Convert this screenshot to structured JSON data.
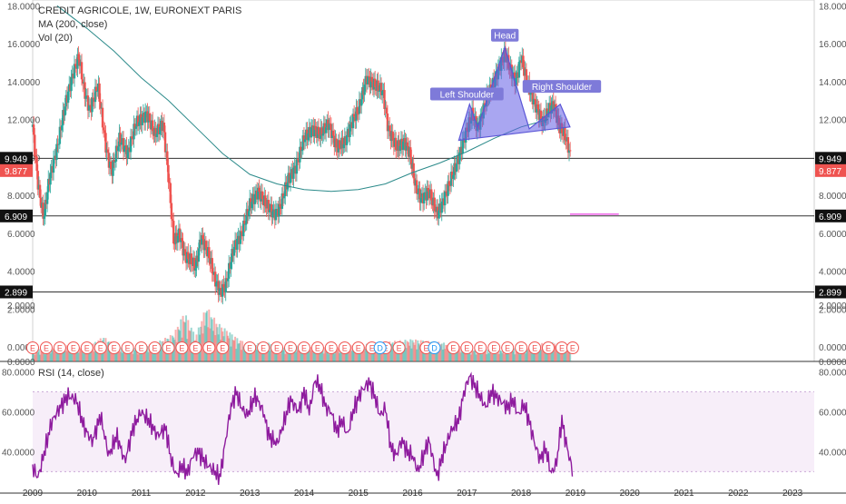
{
  "chart_data": {
    "type": "candlestick",
    "title": "CREDIT AGRICOLE, 1W, EURONEXT PARIS",
    "indicators": [
      "MA (200, close)",
      "Vol (20)"
    ],
    "price_axis_ticks": [
      "18.0000",
      "16.0000",
      "14.0000",
      "12.0000",
      "10.0000",
      "8.0000",
      "6.0000",
      "4.0000",
      "2.0000",
      "0.0000"
    ],
    "price_ylim": [
      0,
      18
    ],
    "x_ticks": [
      "2009",
      "2010",
      "2011",
      "2012",
      "2013",
      "2014",
      "2015",
      "2016",
      "2017",
      "2018",
      "2019",
      "2020",
      "2021",
      "2022",
      "2023"
    ],
    "horizontal_levels": [
      {
        "value": 9.949,
        "label": "9.949"
      },
      {
        "value": 6.909,
        "label": "6.909"
      },
      {
        "value": 2.899,
        "label": "2.899"
      }
    ],
    "last_price": {
      "value": 9.877,
      "label": "9.877"
    },
    "annotations": [
      {
        "text": "Left Shoulder"
      },
      {
        "text": "Head"
      },
      {
        "text": "Right Shoulder"
      }
    ],
    "price_path": [
      [
        2009.0,
        11.6
      ],
      [
        2009.1,
        8.5
      ],
      [
        2009.2,
        6.8
      ],
      [
        2009.3,
        8.8
      ],
      [
        2009.45,
        10.5
      ],
      [
        2009.6,
        12.8
      ],
      [
        2009.75,
        14.5
      ],
      [
        2009.85,
        15.3
      ],
      [
        2009.95,
        13.5
      ],
      [
        2010.05,
        12.5
      ],
      [
        2010.2,
        13.8
      ],
      [
        2010.35,
        10.5
      ],
      [
        2010.45,
        9.2
      ],
      [
        2010.6,
        11.0
      ],
      [
        2010.75,
        10.2
      ],
      [
        2010.9,
        11.8
      ],
      [
        2011.0,
        12.0
      ],
      [
        2011.1,
        12.3
      ],
      [
        2011.25,
        11.2
      ],
      [
        2011.4,
        11.8
      ],
      [
        2011.5,
        9.0
      ],
      [
        2011.6,
        5.5
      ],
      [
        2011.7,
        6.0
      ],
      [
        2011.8,
        4.8
      ],
      [
        2011.9,
        4.6
      ],
      [
        2012.0,
        4.2
      ],
      [
        2012.1,
        5.8
      ],
      [
        2012.25,
        4.8
      ],
      [
        2012.35,
        3.6
      ],
      [
        2012.45,
        2.9
      ],
      [
        2012.55,
        3.2
      ],
      [
        2012.7,
        5.2
      ],
      [
        2012.85,
        6.0
      ],
      [
        2013.0,
        7.5
      ],
      [
        2013.15,
        8.2
      ],
      [
        2013.3,
        7.5
      ],
      [
        2013.45,
        7.0
      ],
      [
        2013.55,
        7.3
      ],
      [
        2013.7,
        8.8
      ],
      [
        2013.85,
        9.5
      ],
      [
        2014.0,
        11.0
      ],
      [
        2014.15,
        11.5
      ],
      [
        2014.3,
        11.2
      ],
      [
        2014.45,
        11.8
      ],
      [
        2014.6,
        10.5
      ],
      [
        2014.75,
        10.8
      ],
      [
        2014.9,
        12.0
      ],
      [
        2015.0,
        12.5
      ],
      [
        2015.15,
        14.2
      ],
      [
        2015.3,
        13.8
      ],
      [
        2015.45,
        13.5
      ],
      [
        2015.55,
        11.5
      ],
      [
        2015.7,
        10.5
      ],
      [
        2015.85,
        10.8
      ],
      [
        2015.95,
        10.2
      ],
      [
        2016.05,
        8.5
      ],
      [
        2016.15,
        7.8
      ],
      [
        2016.3,
        8.2
      ],
      [
        2016.45,
        7.0
      ],
      [
        2016.55,
        7.6
      ],
      [
        2016.7,
        8.8
      ],
      [
        2016.85,
        10.0
      ],
      [
        2016.95,
        11.0
      ],
      [
        2017.1,
        12.3
      ],
      [
        2017.2,
        11.5
      ],
      [
        2017.35,
        13.0
      ],
      [
        2017.5,
        14.0
      ],
      [
        2017.6,
        14.8
      ],
      [
        2017.7,
        15.5
      ],
      [
        2017.8,
        14.6
      ],
      [
        2017.9,
        14.0
      ],
      [
        2018.0,
        15.3
      ],
      [
        2018.1,
        14.0
      ],
      [
        2018.2,
        13.2
      ],
      [
        2018.3,
        12.5
      ],
      [
        2018.4,
        11.8
      ],
      [
        2018.5,
        12.5
      ],
      [
        2018.6,
        12.8
      ],
      [
        2018.7,
        11.6
      ],
      [
        2018.8,
        11.2
      ],
      [
        2018.88,
        10.4
      ],
      [
        2018.92,
        9.877
      ]
    ],
    "ma200_path": [
      [
        2009.45,
        18.0
      ],
      [
        2010.0,
        16.8
      ],
      [
        2010.5,
        15.6
      ],
      [
        2011.0,
        14.2
      ],
      [
        2011.5,
        13.0
      ],
      [
        2012.0,
        11.6
      ],
      [
        2012.5,
        10.2
      ],
      [
        2013.0,
        9.1
      ],
      [
        2013.5,
        8.6
      ],
      [
        2014.0,
        8.3
      ],
      [
        2014.5,
        8.2
      ],
      [
        2015.0,
        8.3
      ],
      [
        2015.5,
        8.6
      ],
      [
        2016.0,
        9.2
      ],
      [
        2016.5,
        9.7
      ],
      [
        2017.0,
        10.3
      ],
      [
        2017.5,
        11.0
      ],
      [
        2018.0,
        11.6
      ],
      [
        2018.5,
        12.0
      ]
    ],
    "volume_path": [
      [
        2009.0,
        0.4
      ],
      [
        2009.5,
        0.6
      ],
      [
        2010.0,
        0.5
      ],
      [
        2010.3,
        0.9
      ],
      [
        2010.6,
        0.5
      ],
      [
        2011.0,
        0.5
      ],
      [
        2011.3,
        0.7
      ],
      [
        2011.6,
        1.0
      ],
      [
        2011.8,
        1.8
      ],
      [
        2012.0,
        0.9
      ],
      [
        2012.2,
        2.0
      ],
      [
        2012.4,
        1.4
      ],
      [
        2012.6,
        1.1
      ],
      [
        2012.8,
        0.8
      ],
      [
        2013.0,
        0.6
      ],
      [
        2013.3,
        0.7
      ],
      [
        2013.6,
        0.5
      ],
      [
        2014.0,
        0.6
      ],
      [
        2014.5,
        0.5
      ],
      [
        2015.0,
        0.6
      ],
      [
        2015.5,
        0.7
      ],
      [
        2016.0,
        0.8
      ],
      [
        2016.5,
        0.7
      ],
      [
        2017.0,
        0.5
      ],
      [
        2017.5,
        0.4
      ],
      [
        2018.0,
        0.5
      ],
      [
        2018.5,
        0.7
      ],
      [
        2018.9,
        0.6
      ]
    ],
    "earnings_markers": [
      2009.0,
      2009.25,
      2009.5,
      2009.75,
      2010.0,
      2010.25,
      2010.5,
      2010.75,
      2011.0,
      2011.25,
      2011.5,
      2011.75,
      2012.0,
      2012.25,
      2012.5,
      2013.0,
      2013.25,
      2013.5,
      2013.75,
      2014.0,
      2014.25,
      2014.5,
      2014.75,
      2015.0,
      2015.25,
      2015.5,
      2015.75,
      2016.25,
      2016.75,
      2017.0,
      2017.25,
      2017.5,
      2017.75,
      2018.0,
      2018.25,
      2018.5,
      2018.75,
      2018.95
    ],
    "dividend_markers": [
      2015.4,
      2016.4
    ],
    "volume_ticks": [
      "2.0000",
      "0.0000"
    ],
    "rsi": {
      "label": "RSI (14, close)",
      "ticks": [
        "80.0000",
        "60.0000",
        "40.0000"
      ],
      "ylim": [
        22,
        82
      ],
      "band": [
        30,
        70
      ],
      "path": [
        [
          2009.0,
          32
        ],
        [
          2009.1,
          27
        ],
        [
          2009.2,
          38
        ],
        [
          2009.35,
          55
        ],
        [
          2009.5,
          62
        ],
        [
          2009.65,
          68
        ],
        [
          2009.8,
          66
        ],
        [
          2009.95,
          52
        ],
        [
          2010.1,
          45
        ],
        [
          2010.25,
          58
        ],
        [
          2010.4,
          38
        ],
        [
          2010.55,
          48
        ],
        [
          2010.7,
          35
        ],
        [
          2010.85,
          52
        ],
        [
          2011.0,
          60
        ],
        [
          2011.15,
          55
        ],
        [
          2011.3,
          48
        ],
        [
          2011.45,
          52
        ],
        [
          2011.55,
          36
        ],
        [
          2011.65,
          28
        ],
        [
          2011.75,
          33
        ],
        [
          2011.85,
          29
        ],
        [
          2011.95,
          38
        ],
        [
          2012.05,
          40
        ],
        [
          2012.2,
          34
        ],
        [
          2012.35,
          30
        ],
        [
          2012.45,
          27
        ],
        [
          2012.55,
          45
        ],
        [
          2012.65,
          62
        ],
        [
          2012.75,
          70
        ],
        [
          2012.85,
          62
        ],
        [
          2012.95,
          58
        ],
        [
          2013.1,
          68
        ],
        [
          2013.25,
          60
        ],
        [
          2013.35,
          48
        ],
        [
          2013.5,
          44
        ],
        [
          2013.6,
          52
        ],
        [
          2013.75,
          66
        ],
        [
          2013.9,
          60
        ],
        [
          2014.0,
          70
        ],
        [
          2014.1,
          60
        ],
        [
          2014.2,
          76
        ],
        [
          2014.3,
          72
        ],
        [
          2014.4,
          62
        ],
        [
          2014.5,
          60
        ],
        [
          2014.6,
          50
        ],
        [
          2014.7,
          56
        ],
        [
          2014.8,
          48
        ],
        [
          2014.9,
          60
        ],
        [
          2015.05,
          70
        ],
        [
          2015.2,
          75
        ],
        [
          2015.3,
          68
        ],
        [
          2015.4,
          58
        ],
        [
          2015.5,
          62
        ],
        [
          2015.6,
          42
        ],
        [
          2015.7,
          38
        ],
        [
          2015.8,
          46
        ],
        [
          2015.9,
          40
        ],
        [
          2016.0,
          38
        ],
        [
          2016.1,
          30
        ],
        [
          2016.2,
          38
        ],
        [
          2016.3,
          46
        ],
        [
          2016.45,
          27
        ],
        [
          2016.55,
          38
        ],
        [
          2016.7,
          50
        ],
        [
          2016.85,
          56
        ],
        [
          2016.95,
          70
        ],
        [
          2017.05,
          78
        ],
        [
          2017.2,
          70
        ],
        [
          2017.35,
          62
        ],
        [
          2017.45,
          70
        ],
        [
          2017.6,
          66
        ],
        [
          2017.75,
          62
        ],
        [
          2017.85,
          66
        ],
        [
          2017.95,
          58
        ],
        [
          2018.05,
          64
        ],
        [
          2018.15,
          55
        ],
        [
          2018.25,
          44
        ],
        [
          2018.35,
          36
        ],
        [
          2018.45,
          42
        ],
        [
          2018.55,
          29
        ],
        [
          2018.65,
          34
        ],
        [
          2018.75,
          56
        ],
        [
          2018.8,
          48
        ],
        [
          2018.88,
          38
        ],
        [
          2018.95,
          30
        ]
      ]
    }
  }
}
